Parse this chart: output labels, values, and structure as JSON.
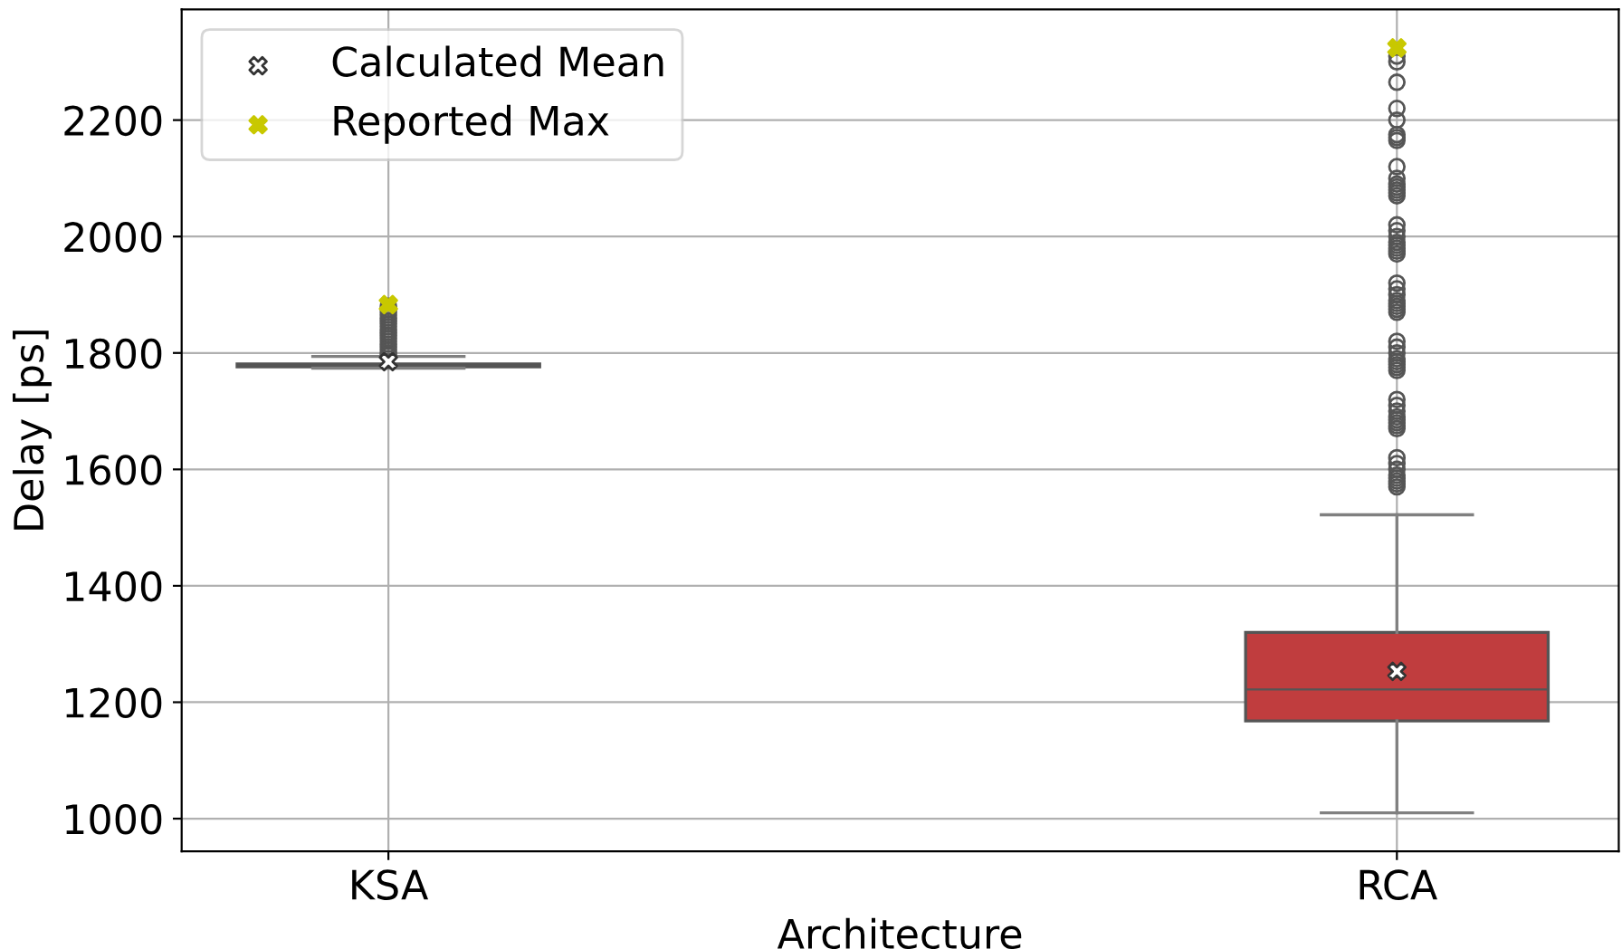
{
  "chart_data": {
    "type": "box",
    "xlabel": "Architecture",
    "ylabel": "Delay [ps]",
    "categories": [
      "KSA",
      "RCA"
    ],
    "series": [
      {
        "colors": [
          "#3d6b3d",
          "#c03d3e"
        ],
        "boxes": [
          {
            "low": 1774,
            "q1": 1776,
            "median": 1779,
            "q3": 1781,
            "high": 1794,
            "outliers": [
              1797,
              1800,
              1805,
              1810,
              1815,
              1820,
              1825,
              1830,
              1835,
              1840,
              1845,
              1850,
              1855,
              1860,
              1865,
              1870,
              1875,
              1880
            ]
          },
          {
            "low": 1010,
            "q1": 1168,
            "median": 1222,
            "q3": 1320,
            "high": 1522,
            "outliers": [
              1570,
              1575,
              1580,
              1585,
              1590,
              1600,
              1610,
              1620,
              1670,
              1675,
              1680,
              1685,
              1690,
              1700,
              1710,
              1720,
              1770,
              1775,
              1780,
              1785,
              1790,
              1800,
              1810,
              1820,
              1870,
              1875,
              1880,
              1885,
              1890,
              1900,
              1910,
              1920,
              1970,
              1975,
              1980,
              1985,
              1990,
              2000,
              2010,
              2020,
              2070,
              2075,
              2080,
              2085,
              2090,
              2100,
              2120,
              2165,
              2170,
              2175,
              2200,
              2220,
              2265,
              2300,
              2310
            ]
          }
        ]
      },
      {
        "type": "scatter",
        "name": "Calculated Mean",
        "x": [
          "KSA",
          "RCA"
        ],
        "values": [
          1785,
          1253
        ],
        "color": "#ffffff",
        "marker": "cross"
      },
      {
        "type": "scatter",
        "name": "Reported Max",
        "x": [
          "KSA",
          "RCA"
        ],
        "values": [
          1883,
          2324
        ],
        "color": "#c8c800",
        "marker": "cross"
      }
    ],
    "ylim": [
      944,
      2390
    ],
    "yticks": [
      1000,
      1200,
      1400,
      1600,
      1800,
      2000,
      2200
    ],
    "grid": true,
    "legend": "top left"
  }
}
